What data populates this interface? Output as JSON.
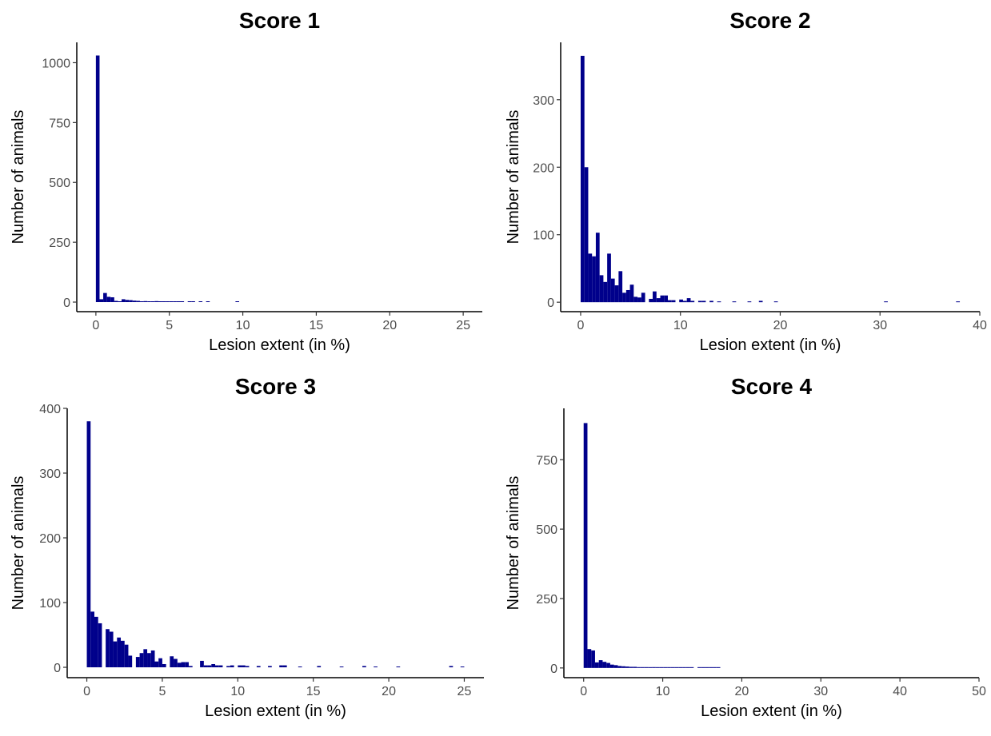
{
  "chart_data": [
    {
      "type": "bar",
      "title": "Score 1",
      "xlabel": "Lesion extent (in %)",
      "ylabel": "Number of animals",
      "xlim": [
        -1.3,
        26.3
      ],
      "ylim": [
        -40,
        1085
      ],
      "xticks": [
        0,
        5,
        10,
        15,
        20,
        25
      ],
      "yticks": [
        0,
        250,
        500,
        750,
        1000
      ],
      "grid": false,
      "color": "#00008B",
      "bin_width": 0.25,
      "bins": [
        {
          "x": 0.0,
          "y": 1030
        },
        {
          "x": 0.25,
          "y": 12
        },
        {
          "x": 0.5,
          "y": 38
        },
        {
          "x": 0.75,
          "y": 22
        },
        {
          "x": 1.0,
          "y": 20
        },
        {
          "x": 1.25,
          "y": 5
        },
        {
          "x": 1.5,
          "y": 3
        },
        {
          "x": 1.75,
          "y": 12
        },
        {
          "x": 2.0,
          "y": 9
        },
        {
          "x": 2.25,
          "y": 8
        },
        {
          "x": 2.5,
          "y": 6
        },
        {
          "x": 2.75,
          "y": 5
        },
        {
          "x": 3.0,
          "y": 3
        },
        {
          "x": 3.25,
          "y": 4
        },
        {
          "x": 3.5,
          "y": 3
        },
        {
          "x": 3.75,
          "y": 3
        },
        {
          "x": 4.0,
          "y": 4
        },
        {
          "x": 4.25,
          "y": 2
        },
        {
          "x": 4.5,
          "y": 3
        },
        {
          "x": 4.75,
          "y": 2
        },
        {
          "x": 5.0,
          "y": 3
        },
        {
          "x": 5.25,
          "y": 2
        },
        {
          "x": 5.5,
          "y": 2
        },
        {
          "x": 5.75,
          "y": 1
        },
        {
          "x": 6.25,
          "y": 2
        },
        {
          "x": 6.5,
          "y": 1
        },
        {
          "x": 7.0,
          "y": 1
        },
        {
          "x": 7.5,
          "y": 1
        },
        {
          "x": 9.5,
          "y": 2
        }
      ]
    },
    {
      "type": "bar",
      "title": "Score 2",
      "xlabel": "Lesion extent (in %)",
      "ylabel": "Number of animals",
      "xlim": [
        -2,
        40
      ],
      "ylim": [
        -14,
        385
      ],
      "xticks": [
        0,
        10,
        20,
        30,
        40
      ],
      "yticks": [
        0,
        100,
        200,
        300
      ],
      "grid": false,
      "color": "#00008B",
      "bin_width": 0.38,
      "bins": [
        {
          "x": 0.0,
          "y": 365
        },
        {
          "x": 0.38,
          "y": 200
        },
        {
          "x": 0.76,
          "y": 72
        },
        {
          "x": 1.14,
          "y": 68
        },
        {
          "x": 1.52,
          "y": 103
        },
        {
          "x": 1.9,
          "y": 40
        },
        {
          "x": 2.28,
          "y": 30
        },
        {
          "x": 2.66,
          "y": 72
        },
        {
          "x": 3.04,
          "y": 35
        },
        {
          "x": 3.42,
          "y": 25
        },
        {
          "x": 3.8,
          "y": 46
        },
        {
          "x": 4.18,
          "y": 14
        },
        {
          "x": 4.56,
          "y": 18
        },
        {
          "x": 4.94,
          "y": 26
        },
        {
          "x": 5.32,
          "y": 8
        },
        {
          "x": 5.7,
          "y": 7
        },
        {
          "x": 6.08,
          "y": 14
        },
        {
          "x": 6.84,
          "y": 5
        },
        {
          "x": 7.22,
          "y": 16
        },
        {
          "x": 7.6,
          "y": 6
        },
        {
          "x": 7.98,
          "y": 10
        },
        {
          "x": 8.36,
          "y": 10
        },
        {
          "x": 8.74,
          "y": 3
        },
        {
          "x": 9.12,
          "y": 3
        },
        {
          "x": 9.88,
          "y": 4
        },
        {
          "x": 10.26,
          "y": 2
        },
        {
          "x": 10.64,
          "y": 6
        },
        {
          "x": 11.02,
          "y": 2
        },
        {
          "x": 11.78,
          "y": 2
        },
        {
          "x": 12.16,
          "y": 2
        },
        {
          "x": 12.92,
          "y": 2
        },
        {
          "x": 13.68,
          "y": 1
        },
        {
          "x": 15.2,
          "y": 1
        },
        {
          "x": 16.72,
          "y": 1
        },
        {
          "x": 17.86,
          "y": 2
        },
        {
          "x": 19.38,
          "y": 1
        },
        {
          "x": 30.4,
          "y": 1
        },
        {
          "x": 37.62,
          "y": 1
        }
      ]
    },
    {
      "type": "bar",
      "title": "Score 3",
      "xlabel": "Lesion extent (in %)",
      "ylabel": "Number of animals",
      "xlim": [
        -1.3,
        26.3
      ],
      "ylim": [
        -16,
        400
      ],
      "xticks": [
        0,
        5,
        10,
        15,
        20,
        25
      ],
      "yticks": [
        0,
        100,
        200,
        300,
        400
      ],
      "grid": false,
      "color": "#00008B",
      "bin_width": 0.25,
      "bins": [
        {
          "x": 0.0,
          "y": 380
        },
        {
          "x": 0.25,
          "y": 86
        },
        {
          "x": 0.5,
          "y": 78
        },
        {
          "x": 0.75,
          "y": 68
        },
        {
          "x": 1.25,
          "y": 59
        },
        {
          "x": 1.5,
          "y": 55
        },
        {
          "x": 1.75,
          "y": 40
        },
        {
          "x": 2.0,
          "y": 46
        },
        {
          "x": 2.25,
          "y": 41
        },
        {
          "x": 2.5,
          "y": 35
        },
        {
          "x": 2.75,
          "y": 18
        },
        {
          "x": 3.25,
          "y": 16
        },
        {
          "x": 3.5,
          "y": 22
        },
        {
          "x": 3.75,
          "y": 28
        },
        {
          "x": 4.0,
          "y": 22
        },
        {
          "x": 4.25,
          "y": 26
        },
        {
          "x": 4.5,
          "y": 9
        },
        {
          "x": 4.75,
          "y": 14
        },
        {
          "x": 5.0,
          "y": 5
        },
        {
          "x": 5.5,
          "y": 17
        },
        {
          "x": 5.75,
          "y": 13
        },
        {
          "x": 6.0,
          "y": 7
        },
        {
          "x": 6.25,
          "y": 8
        },
        {
          "x": 6.5,
          "y": 8
        },
        {
          "x": 6.75,
          "y": 2
        },
        {
          "x": 7.5,
          "y": 10
        },
        {
          "x": 7.75,
          "y": 3
        },
        {
          "x": 8.0,
          "y": 3
        },
        {
          "x": 8.25,
          "y": 5
        },
        {
          "x": 8.5,
          "y": 3
        },
        {
          "x": 8.75,
          "y": 3
        },
        {
          "x": 9.25,
          "y": 2
        },
        {
          "x": 9.5,
          "y": 3
        },
        {
          "x": 10.0,
          "y": 3
        },
        {
          "x": 10.25,
          "y": 3
        },
        {
          "x": 10.5,
          "y": 2
        },
        {
          "x": 11.25,
          "y": 2
        },
        {
          "x": 12.0,
          "y": 2
        },
        {
          "x": 12.75,
          "y": 3
        },
        {
          "x": 13.0,
          "y": 3
        },
        {
          "x": 14.0,
          "y": 1
        },
        {
          "x": 15.25,
          "y": 2
        },
        {
          "x": 16.75,
          "y": 1
        },
        {
          "x": 18.25,
          "y": 2
        },
        {
          "x": 19.0,
          "y": 1
        },
        {
          "x": 20.5,
          "y": 1
        },
        {
          "x": 24.0,
          "y": 2
        },
        {
          "x": 24.75,
          "y": 1
        }
      ]
    },
    {
      "type": "bar",
      "title": "Score 4",
      "xlabel": "Lesion extent (in %)",
      "ylabel": "Number of animals",
      "xlim": [
        -2.5,
        50
      ],
      "ylim": [
        -35,
        935
      ],
      "xticks": [
        0,
        10,
        20,
        30,
        40,
        50
      ],
      "yticks": [
        0,
        250,
        500,
        750
      ],
      "grid": false,
      "color": "#00008B",
      "bin_width": 0.48,
      "bins": [
        {
          "x": 0.0,
          "y": 882
        },
        {
          "x": 0.48,
          "y": 68
        },
        {
          "x": 0.96,
          "y": 63
        },
        {
          "x": 1.44,
          "y": 20
        },
        {
          "x": 1.92,
          "y": 28
        },
        {
          "x": 2.4,
          "y": 22
        },
        {
          "x": 2.88,
          "y": 18
        },
        {
          "x": 3.36,
          "y": 12
        },
        {
          "x": 3.84,
          "y": 10
        },
        {
          "x": 4.32,
          "y": 7
        },
        {
          "x": 4.8,
          "y": 6
        },
        {
          "x": 5.28,
          "y": 5
        },
        {
          "x": 5.76,
          "y": 4
        },
        {
          "x": 6.24,
          "y": 4
        },
        {
          "x": 6.72,
          "y": 3
        },
        {
          "x": 7.2,
          "y": 3
        },
        {
          "x": 7.68,
          "y": 3
        },
        {
          "x": 8.16,
          "y": 2
        },
        {
          "x": 8.64,
          "y": 3
        },
        {
          "x": 9.12,
          "y": 2
        },
        {
          "x": 9.6,
          "y": 2
        },
        {
          "x": 10.08,
          "y": 2
        },
        {
          "x": 10.56,
          "y": 1
        },
        {
          "x": 11.04,
          "y": 2
        },
        {
          "x": 11.52,
          "y": 1
        },
        {
          "x": 12.0,
          "y": 2
        },
        {
          "x": 12.48,
          "y": 1
        },
        {
          "x": 12.96,
          "y": 2
        },
        {
          "x": 13.44,
          "y": 1
        },
        {
          "x": 14.4,
          "y": 2
        },
        {
          "x": 14.88,
          "y": 1
        },
        {
          "x": 15.36,
          "y": 1
        },
        {
          "x": 15.84,
          "y": 1
        },
        {
          "x": 16.32,
          "y": 1
        },
        {
          "x": 16.8,
          "y": 1
        }
      ]
    }
  ]
}
